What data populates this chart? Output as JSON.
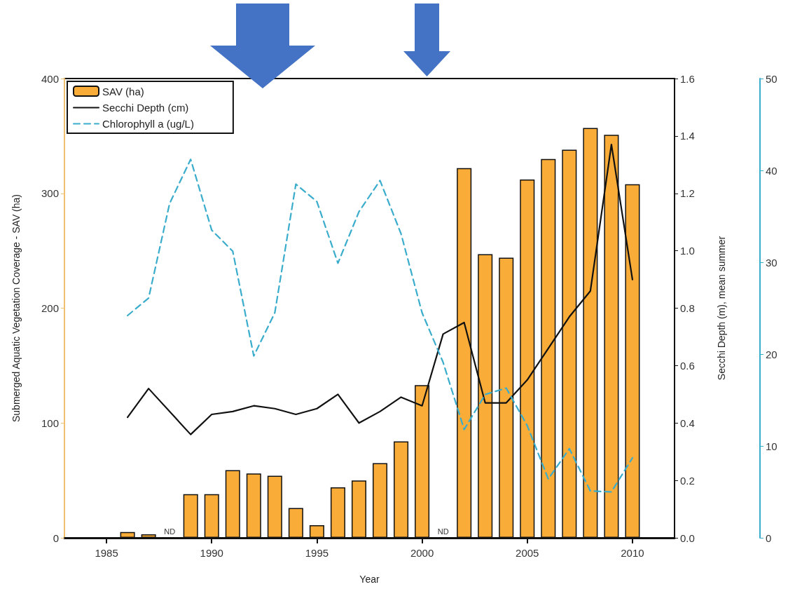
{
  "chart_data": {
    "type": "bar",
    "xlabel": "Year",
    "ylabel": "Submerged Aquatic Vegetation Coverage - SAV (ha)",
    "y2label": "Secchi Depth (m), mean summer",
    "x": [
      1986,
      1987,
      1988,
      1989,
      1990,
      1991,
      1992,
      1993,
      1994,
      1995,
      1996,
      1997,
      1998,
      1999,
      2000,
      2001,
      2002,
      2003,
      2004,
      2005,
      2006,
      2007,
      2008,
      2009,
      2010
    ],
    "series": [
      {
        "name": "SAV (ha)",
        "color": "#f9ac38",
        "values": [
          5,
          3,
          null,
          38,
          38,
          59,
          56,
          54,
          26,
          11,
          44,
          50,
          65,
          84,
          133,
          null,
          322,
          247,
          244,
          312,
          330,
          338,
          357,
          351,
          308
        ]
      },
      {
        "name": "Secchi Depth (cm)",
        "type": "line",
        "axis": "y2",
        "color": "#111111",
        "line_style": "solid",
        "x": [
          1986,
          1987,
          1989,
          1990,
          1991,
          1992,
          1993,
          1994,
          1995,
          1996,
          1997,
          1998,
          1999,
          2000,
          2001,
          2002,
          2003,
          2004,
          2005,
          2006,
          2007,
          2008,
          2009,
          2010
        ],
        "values": [
          0.42,
          0.52,
          0.36,
          0.43,
          0.44,
          0.46,
          0.45,
          0.43,
          0.45,
          0.5,
          0.4,
          0.44,
          0.49,
          0.46,
          0.71,
          0.75,
          0.47,
          0.47,
          0.55,
          0.66,
          0.77,
          0.86,
          1.37,
          0.9
        ]
      },
      {
        "name": "Chlorophyll a (ug/L)",
        "type": "line",
        "axis": "y3",
        "color": "#3aaccc",
        "line_style": "dashed",
        "values": [
          24.2,
          26.1,
          36.4,
          41.2,
          33.5,
          31.2,
          19.8,
          24.5,
          38.5,
          36.6,
          29.9,
          35.5,
          38.9,
          33.1,
          24.5,
          19.1,
          11.8,
          15.6,
          16.3,
          12.2,
          6.4,
          9.7,
          5.1,
          5.0,
          8.7
        ]
      }
    ],
    "xlim": [
      1983,
      2012
    ],
    "xticks": [
      1985,
      1990,
      1995,
      2000,
      2005,
      2010
    ],
    "ylim": [
      0,
      400
    ],
    "yticks": [
      0,
      100,
      200,
      300,
      400
    ],
    "y2lim": [
      0,
      1.6
    ],
    "y2ticks": [
      {
        "value": 0,
        "label": "0.0"
      },
      0.2,
      0.4,
      0.6,
      0.8,
      {
        "value": 1,
        "label": "1.0"
      },
      1.2,
      1.4,
      1.6
    ],
    "y3lim": [
      0,
      50
    ],
    "y3ticks": [
      0,
      10,
      20,
      30,
      40,
      50
    ],
    "annotations": [
      "ND",
      "ND"
    ],
    "legend": "top left",
    "marker": "none",
    "grid": false
  }
}
